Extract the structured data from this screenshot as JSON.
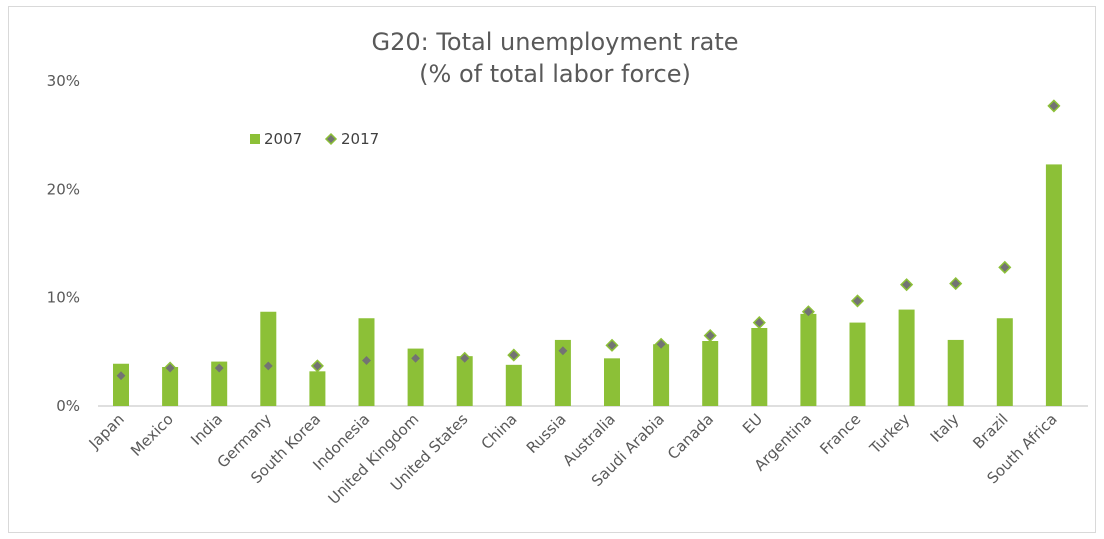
{
  "chart_data": {
    "type": "bar",
    "title": "G20: Total unemployment rate",
    "subtitle": "(% of total labor force)",
    "categories": [
      "Japan",
      "Mexico",
      "India",
      "Germany",
      "South Korea",
      "Indonesia",
      "United Kingdom",
      "United States",
      "China",
      "Russia",
      "Australia",
      "Saudi Arabia",
      "Canada",
      "EU",
      "Argentina",
      "France",
      "Turkey",
      "Italy",
      "Brazil",
      "South Africa"
    ],
    "series": [
      {
        "name": "2007",
        "mark": "bar",
        "color": "#8cc037",
        "values": [
          3.9,
          3.6,
          4.1,
          8.7,
          3.2,
          8.1,
          5.3,
          4.6,
          3.8,
          6.1,
          4.4,
          5.7,
          6.0,
          7.2,
          8.5,
          7.7,
          8.9,
          6.1,
          8.1,
          22.3
        ]
      },
      {
        "name": "2017",
        "mark": "diamond",
        "color": "#737373",
        "edge_color": "#8cc037",
        "values": [
          2.8,
          3.5,
          3.5,
          3.7,
          3.7,
          4.2,
          4.4,
          4.4,
          4.7,
          5.1,
          5.6,
          5.7,
          6.5,
          7.7,
          8.7,
          9.7,
          11.2,
          11.3,
          12.8,
          27.7
        ]
      }
    ],
    "y_ticks": [
      "0%",
      "10%",
      "20%",
      "30%"
    ],
    "ylim": [
      0,
      30
    ],
    "grid": false,
    "legend_position": "top-left"
  }
}
